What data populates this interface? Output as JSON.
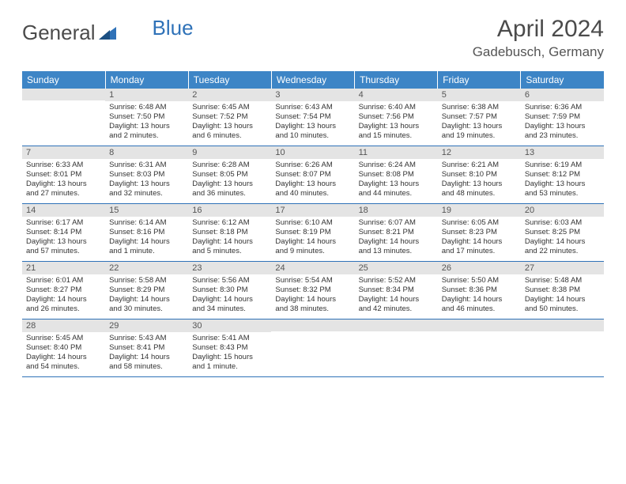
{
  "brand": {
    "part1": "General",
    "part2": "Blue"
  },
  "title": "April 2024",
  "location": "Gadebusch, Germany",
  "colors": {
    "header_bg": "#3d85c6",
    "header_text": "#ffffff",
    "daynum_bg": "#e4e4e4",
    "row_border": "#2f72b8",
    "text": "#333333",
    "brand_gray": "#4b4b4b",
    "brand_blue": "#2f72b8"
  },
  "day_headers": [
    "Sunday",
    "Monday",
    "Tuesday",
    "Wednesday",
    "Thursday",
    "Friday",
    "Saturday"
  ],
  "weeks": [
    [
      {
        "num": "",
        "lines": [
          "",
          "",
          "",
          ""
        ]
      },
      {
        "num": "1",
        "lines": [
          "Sunrise: 6:48 AM",
          "Sunset: 7:50 PM",
          "Daylight: 13 hours",
          "and 2 minutes."
        ]
      },
      {
        "num": "2",
        "lines": [
          "Sunrise: 6:45 AM",
          "Sunset: 7:52 PM",
          "Daylight: 13 hours",
          "and 6 minutes."
        ]
      },
      {
        "num": "3",
        "lines": [
          "Sunrise: 6:43 AM",
          "Sunset: 7:54 PM",
          "Daylight: 13 hours",
          "and 10 minutes."
        ]
      },
      {
        "num": "4",
        "lines": [
          "Sunrise: 6:40 AM",
          "Sunset: 7:56 PM",
          "Daylight: 13 hours",
          "and 15 minutes."
        ]
      },
      {
        "num": "5",
        "lines": [
          "Sunrise: 6:38 AM",
          "Sunset: 7:57 PM",
          "Daylight: 13 hours",
          "and 19 minutes."
        ]
      },
      {
        "num": "6",
        "lines": [
          "Sunrise: 6:36 AM",
          "Sunset: 7:59 PM",
          "Daylight: 13 hours",
          "and 23 minutes."
        ]
      }
    ],
    [
      {
        "num": "7",
        "lines": [
          "Sunrise: 6:33 AM",
          "Sunset: 8:01 PM",
          "Daylight: 13 hours",
          "and 27 minutes."
        ]
      },
      {
        "num": "8",
        "lines": [
          "Sunrise: 6:31 AM",
          "Sunset: 8:03 PM",
          "Daylight: 13 hours",
          "and 32 minutes."
        ]
      },
      {
        "num": "9",
        "lines": [
          "Sunrise: 6:28 AM",
          "Sunset: 8:05 PM",
          "Daylight: 13 hours",
          "and 36 minutes."
        ]
      },
      {
        "num": "10",
        "lines": [
          "Sunrise: 6:26 AM",
          "Sunset: 8:07 PM",
          "Daylight: 13 hours",
          "and 40 minutes."
        ]
      },
      {
        "num": "11",
        "lines": [
          "Sunrise: 6:24 AM",
          "Sunset: 8:08 PM",
          "Daylight: 13 hours",
          "and 44 minutes."
        ]
      },
      {
        "num": "12",
        "lines": [
          "Sunrise: 6:21 AM",
          "Sunset: 8:10 PM",
          "Daylight: 13 hours",
          "and 48 minutes."
        ]
      },
      {
        "num": "13",
        "lines": [
          "Sunrise: 6:19 AM",
          "Sunset: 8:12 PM",
          "Daylight: 13 hours",
          "and 53 minutes."
        ]
      }
    ],
    [
      {
        "num": "14",
        "lines": [
          "Sunrise: 6:17 AM",
          "Sunset: 8:14 PM",
          "Daylight: 13 hours",
          "and 57 minutes."
        ]
      },
      {
        "num": "15",
        "lines": [
          "Sunrise: 6:14 AM",
          "Sunset: 8:16 PM",
          "Daylight: 14 hours",
          "and 1 minute."
        ]
      },
      {
        "num": "16",
        "lines": [
          "Sunrise: 6:12 AM",
          "Sunset: 8:18 PM",
          "Daylight: 14 hours",
          "and 5 minutes."
        ]
      },
      {
        "num": "17",
        "lines": [
          "Sunrise: 6:10 AM",
          "Sunset: 8:19 PM",
          "Daylight: 14 hours",
          "and 9 minutes."
        ]
      },
      {
        "num": "18",
        "lines": [
          "Sunrise: 6:07 AM",
          "Sunset: 8:21 PM",
          "Daylight: 14 hours",
          "and 13 minutes."
        ]
      },
      {
        "num": "19",
        "lines": [
          "Sunrise: 6:05 AM",
          "Sunset: 8:23 PM",
          "Daylight: 14 hours",
          "and 17 minutes."
        ]
      },
      {
        "num": "20",
        "lines": [
          "Sunrise: 6:03 AM",
          "Sunset: 8:25 PM",
          "Daylight: 14 hours",
          "and 22 minutes."
        ]
      }
    ],
    [
      {
        "num": "21",
        "lines": [
          "Sunrise: 6:01 AM",
          "Sunset: 8:27 PM",
          "Daylight: 14 hours",
          "and 26 minutes."
        ]
      },
      {
        "num": "22",
        "lines": [
          "Sunrise: 5:58 AM",
          "Sunset: 8:29 PM",
          "Daylight: 14 hours",
          "and 30 minutes."
        ]
      },
      {
        "num": "23",
        "lines": [
          "Sunrise: 5:56 AM",
          "Sunset: 8:30 PM",
          "Daylight: 14 hours",
          "and 34 minutes."
        ]
      },
      {
        "num": "24",
        "lines": [
          "Sunrise: 5:54 AM",
          "Sunset: 8:32 PM",
          "Daylight: 14 hours",
          "and 38 minutes."
        ]
      },
      {
        "num": "25",
        "lines": [
          "Sunrise: 5:52 AM",
          "Sunset: 8:34 PM",
          "Daylight: 14 hours",
          "and 42 minutes."
        ]
      },
      {
        "num": "26",
        "lines": [
          "Sunrise: 5:50 AM",
          "Sunset: 8:36 PM",
          "Daylight: 14 hours",
          "and 46 minutes."
        ]
      },
      {
        "num": "27",
        "lines": [
          "Sunrise: 5:48 AM",
          "Sunset: 8:38 PM",
          "Daylight: 14 hours",
          "and 50 minutes."
        ]
      }
    ],
    [
      {
        "num": "28",
        "lines": [
          "Sunrise: 5:45 AM",
          "Sunset: 8:40 PM",
          "Daylight: 14 hours",
          "and 54 minutes."
        ]
      },
      {
        "num": "29",
        "lines": [
          "Sunrise: 5:43 AM",
          "Sunset: 8:41 PM",
          "Daylight: 14 hours",
          "and 58 minutes."
        ]
      },
      {
        "num": "30",
        "lines": [
          "Sunrise: 5:41 AM",
          "Sunset: 8:43 PM",
          "Daylight: 15 hours",
          "and 1 minute."
        ]
      },
      {
        "num": "",
        "lines": [
          "",
          "",
          "",
          ""
        ]
      },
      {
        "num": "",
        "lines": [
          "",
          "",
          "",
          ""
        ]
      },
      {
        "num": "",
        "lines": [
          "",
          "",
          "",
          ""
        ]
      },
      {
        "num": "",
        "lines": [
          "",
          "",
          "",
          ""
        ]
      }
    ]
  ]
}
